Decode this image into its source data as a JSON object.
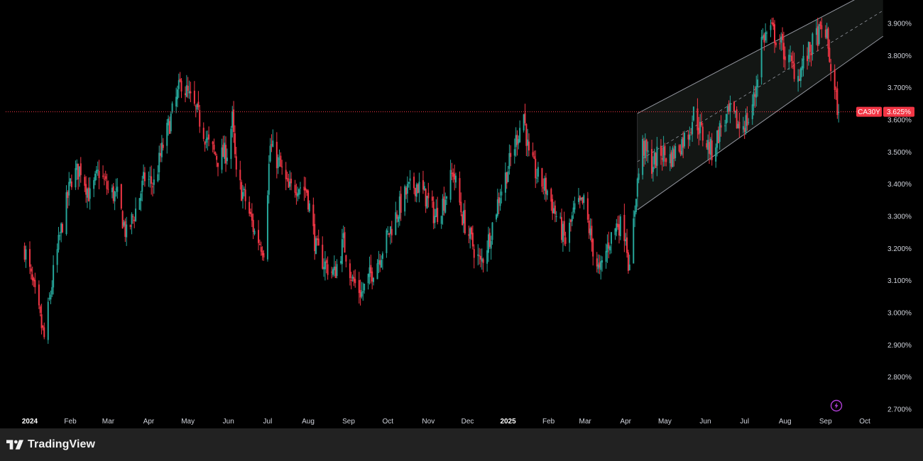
{
  "brand": {
    "name": "TradingView",
    "logo_icon": "tradingview-logo-icon"
  },
  "colors": {
    "up": "#26a69a",
    "down": "#f23645",
    "price_line": "#f23645",
    "channel": "#9598a1",
    "background": "#000000",
    "footer": "#222222",
    "lightning": "#b03fd6"
  },
  "chart_data": {
    "type": "candlestick",
    "symbol": "CA30Y",
    "last_value": 3.625,
    "last_value_label": "3.625%",
    "y_unit": "%",
    "ylim": [
      2.66,
      3.98
    ],
    "y_ticks": [
      "3.900%",
      "3.800%",
      "3.700%",
      "3.600%",
      "3.500%",
      "3.400%",
      "3.300%",
      "3.200%",
      "3.100%",
      "3.000%",
      "2.900%",
      "2.800%",
      "2.700%"
    ],
    "y_tick_values": [
      3.9,
      3.8,
      3.7,
      3.6,
      3.5,
      3.4,
      3.3,
      3.2,
      3.1,
      3.0,
      2.9,
      2.8,
      2.7
    ],
    "x_start": "2024-01-01",
    "x_end": "2025-10-15",
    "x_ticks": [
      {
        "label": "2024",
        "date": "2024-01-01",
        "bold": true
      },
      {
        "label": "Feb",
        "date": "2024-02-01"
      },
      {
        "label": "Mar",
        "date": "2024-03-01"
      },
      {
        "label": "Apr",
        "date": "2024-04-01"
      },
      {
        "label": "May",
        "date": "2024-05-01"
      },
      {
        "label": "Jun",
        "date": "2024-06-01"
      },
      {
        "label": "Jul",
        "date": "2024-07-01"
      },
      {
        "label": "Aug",
        "date": "2024-08-01"
      },
      {
        "label": "Sep",
        "date": "2024-09-01"
      },
      {
        "label": "Oct",
        "date": "2024-10-01"
      },
      {
        "label": "Nov",
        "date": "2024-11-01"
      },
      {
        "label": "Dec",
        "date": "2024-12-01"
      },
      {
        "label": "2025",
        "date": "2025-01-01",
        "bold": true
      },
      {
        "label": "Feb",
        "date": "2025-02-01"
      },
      {
        "label": "Mar",
        "date": "2025-03-01"
      },
      {
        "label": "Apr",
        "date": "2025-04-01"
      },
      {
        "label": "May",
        "date": "2025-05-01"
      },
      {
        "label": "Jun",
        "date": "2025-06-01"
      },
      {
        "label": "Jul",
        "date": "2025-07-01"
      },
      {
        "label": "Aug",
        "date": "2025-08-01"
      },
      {
        "label": "Sep",
        "date": "2025-09-01"
      },
      {
        "label": "Oct",
        "date": "2025-10-01"
      }
    ],
    "path_closes": [
      [
        "2023-12-28",
        3.2
      ],
      [
        "2024-01-05",
        3.05
      ],
      [
        "2024-01-12",
        2.92
      ],
      [
        "2024-01-19",
        3.12
      ],
      [
        "2024-01-26",
        3.28
      ],
      [
        "2024-02-02",
        3.42
      ],
      [
        "2024-02-09",
        3.45
      ],
      [
        "2024-02-16",
        3.36
      ],
      [
        "2024-02-23",
        3.44
      ],
      [
        "2024-03-01",
        3.38
      ],
      [
        "2024-03-08",
        3.36
      ],
      [
        "2024-03-15",
        3.24
      ],
      [
        "2024-03-22",
        3.32
      ],
      [
        "2024-03-29",
        3.42
      ],
      [
        "2024-04-05",
        3.4
      ],
      [
        "2024-04-12",
        3.52
      ],
      [
        "2024-04-19",
        3.62
      ],
      [
        "2024-04-26",
        3.72
      ],
      [
        "2024-05-03",
        3.66
      ],
      [
        "2024-05-10",
        3.6
      ],
      [
        "2024-05-17",
        3.52
      ],
      [
        "2024-05-24",
        3.48
      ],
      [
        "2024-05-31",
        3.5
      ],
      [
        "2024-06-04",
        3.6
      ],
      [
        "2024-06-07",
        3.42
      ],
      [
        "2024-06-14",
        3.35
      ],
      [
        "2024-06-21",
        3.25
      ],
      [
        "2024-06-28",
        3.2
      ],
      [
        "2024-07-03",
        3.52
      ],
      [
        "2024-07-10",
        3.46
      ],
      [
        "2024-07-17",
        3.38
      ],
      [
        "2024-07-24",
        3.4
      ],
      [
        "2024-07-31",
        3.38
      ],
      [
        "2024-08-07",
        3.2
      ],
      [
        "2024-08-14",
        3.15
      ],
      [
        "2024-08-21",
        3.12
      ],
      [
        "2024-08-28",
        3.22
      ],
      [
        "2024-09-04",
        3.1
      ],
      [
        "2024-09-11",
        3.06
      ],
      [
        "2024-09-18",
        3.12
      ],
      [
        "2024-09-25",
        3.18
      ],
      [
        "2024-10-02",
        3.25
      ],
      [
        "2024-10-09",
        3.32
      ],
      [
        "2024-10-16",
        3.38
      ],
      [
        "2024-10-23",
        3.4
      ],
      [
        "2024-10-30",
        3.36
      ],
      [
        "2024-11-06",
        3.3
      ],
      [
        "2024-11-13",
        3.35
      ],
      [
        "2024-11-20",
        3.44
      ],
      [
        "2024-11-27",
        3.3
      ],
      [
        "2024-12-04",
        3.22
      ],
      [
        "2024-12-11",
        3.15
      ],
      [
        "2024-12-18",
        3.24
      ],
      [
        "2024-12-25",
        3.36
      ],
      [
        "2025-01-01",
        3.45
      ],
      [
        "2025-01-08",
        3.55
      ],
      [
        "2025-01-13",
        3.62
      ],
      [
        "2025-01-17",
        3.48
      ],
      [
        "2025-01-24",
        3.42
      ],
      [
        "2025-01-31",
        3.38
      ],
      [
        "2025-02-07",
        3.3
      ],
      [
        "2025-02-14",
        3.22
      ],
      [
        "2025-02-21",
        3.32
      ],
      [
        "2025-02-28",
        3.34
      ],
      [
        "2025-03-07",
        3.2
      ],
      [
        "2025-03-12",
        3.12
      ],
      [
        "2025-03-19",
        3.22
      ],
      [
        "2025-03-26",
        3.28
      ],
      [
        "2025-04-01",
        3.25
      ],
      [
        "2025-04-04",
        3.12
      ],
      [
        "2025-04-09",
        3.38
      ],
      [
        "2025-04-14",
        3.52
      ],
      [
        "2025-04-21",
        3.46
      ],
      [
        "2025-04-28",
        3.5
      ],
      [
        "2025-05-05",
        3.48
      ],
      [
        "2025-05-12",
        3.52
      ],
      [
        "2025-05-19",
        3.56
      ],
      [
        "2025-05-23",
        3.62
      ],
      [
        "2025-05-30",
        3.55
      ],
      [
        "2025-06-06",
        3.5
      ],
      [
        "2025-06-13",
        3.58
      ],
      [
        "2025-06-20",
        3.62
      ],
      [
        "2025-06-27",
        3.58
      ],
      [
        "2025-07-04",
        3.6
      ],
      [
        "2025-07-09",
        3.68
      ],
      [
        "2025-07-14",
        3.85
      ],
      [
        "2025-07-21",
        3.88
      ],
      [
        "2025-07-28",
        3.84
      ],
      [
        "2025-08-04",
        3.78
      ],
      [
        "2025-08-11",
        3.74
      ],
      [
        "2025-08-18",
        3.8
      ],
      [
        "2025-08-25",
        3.86
      ],
      [
        "2025-09-01",
        3.88
      ],
      [
        "2025-09-03",
        3.82
      ],
      [
        "2025-09-08",
        3.68
      ],
      [
        "2025-09-11",
        3.625
      ]
    ],
    "channel": {
      "upper": [
        [
          "2025-04-10",
          3.62
        ],
        [
          "2025-10-15",
          4.02
        ]
      ],
      "lower": [
        [
          "2025-04-10",
          3.32
        ],
        [
          "2025-10-15",
          3.86
        ]
      ],
      "center_dashed": [
        [
          "2025-04-10",
          3.47
        ],
        [
          "2025-10-15",
          3.94
        ]
      ]
    },
    "horizontal_line": 3.625
  }
}
